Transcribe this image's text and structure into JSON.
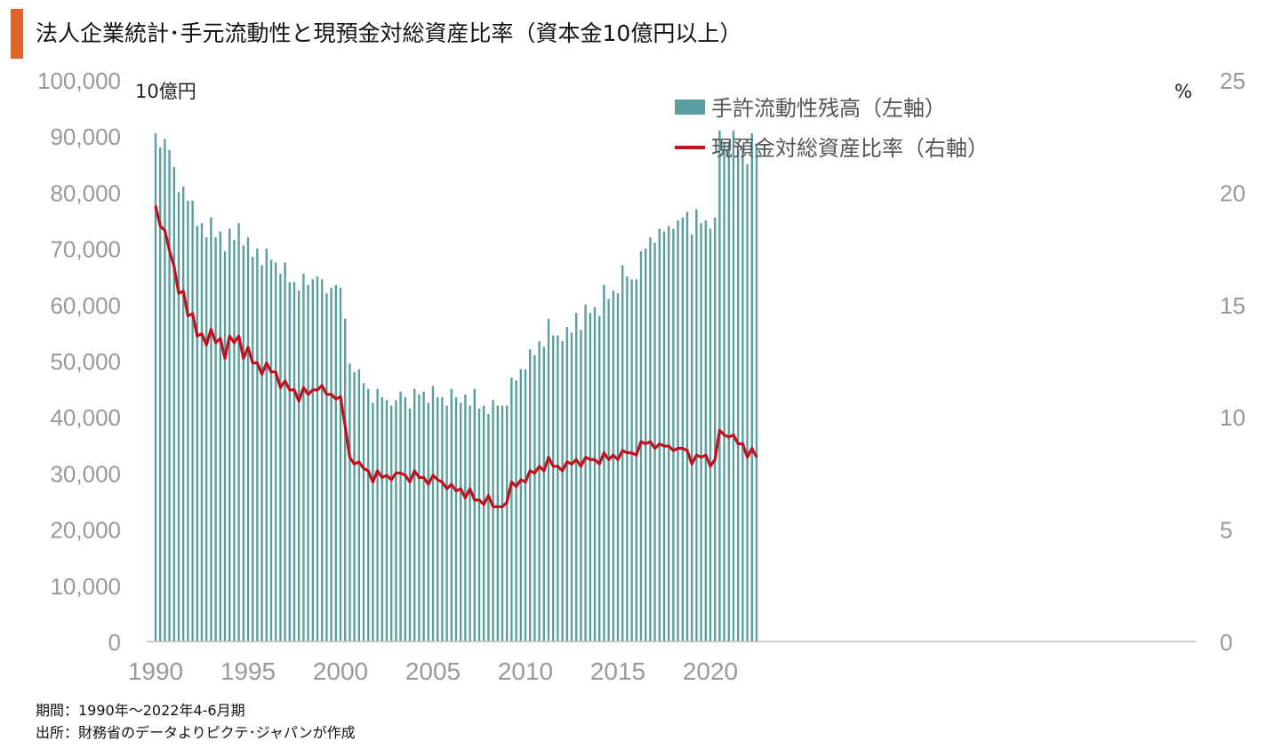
{
  "title": "法人企業統計･手元流動性と現預金対総資産比率（資本金10億円以上）",
  "notes": {
    "period": "期間：1990年～2022年4-6月期",
    "source": "出所：財務省のデータよりピクテ･ジャパンが作成"
  },
  "colors": {
    "accent": "#e0632a",
    "bars": "#5b9ea0",
    "line": "#c0111f"
  },
  "chart_data": {
    "type": "bar+line",
    "left_axis": {
      "unit": "10億円",
      "ylim": [
        0,
        100000
      ],
      "ticks": [
        "100,000",
        "90,000",
        "80,000",
        "70,000",
        "60,000",
        "50,000",
        "40,000",
        "30,000",
        "20,000",
        "10,000",
        "0"
      ]
    },
    "right_axis": {
      "unit": "%",
      "ylim": [
        0,
        25
      ],
      "ticks": [
        "25",
        "20",
        "15",
        "10",
        "5",
        "0"
      ]
    },
    "x_axis": {
      "start_year": 1990,
      "ticks": [
        "1990",
        "1995",
        "2000",
        "2005",
        "2010",
        "2015",
        "2020"
      ]
    },
    "legend": [
      "手許流動性残高（左軸）",
      "現預金対総資産比率（右軸）"
    ],
    "series": [
      {
        "name": "手許流動性残高（左軸）",
        "type": "bar",
        "values": [
          90500,
          88000,
          89500,
          87500,
          84500,
          80000,
          81000,
          78500,
          78500,
          74000,
          74500,
          72000,
          75500,
          72000,
          73000,
          69500,
          73500,
          71500,
          74500,
          70500,
          72000,
          68500,
          70000,
          67000,
          70000,
          68000,
          67500,
          65500,
          67500,
          64000,
          64000,
          62500,
          65500,
          63500,
          64500,
          65000,
          64500,
          62000,
          63000,
          63500,
          63000,
          57500,
          49500,
          48000,
          48500,
          46000,
          45000,
          42500,
          45000,
          43500,
          43000,
          42000,
          43000,
          44500,
          43500,
          41500,
          45000,
          44000,
          44500,
          42500,
          45500,
          43500,
          43500,
          42000,
          45000,
          43500,
          42500,
          44000,
          42000,
          45000,
          41500,
          42000,
          40500,
          43000,
          42000,
          42000,
          42000,
          47000,
          46500,
          48500,
          48500,
          52000,
          51000,
          53500,
          52500,
          57500,
          54500,
          54500,
          53500,
          56000,
          55000,
          58500,
          55500,
          60000,
          58500,
          59500,
          58000,
          63500,
          61000,
          62500,
          62000,
          67000,
          65000,
          64500,
          64500,
          69500,
          70000,
          72000,
          71000,
          73500,
          73000,
          74000,
          73500,
          75000,
          75500,
          76500,
          72500,
          77000,
          74500,
          75000,
          73500,
          75500,
          91000,
          89000,
          89000,
          91000,
          87500,
          88000,
          85000,
          90500,
          88500
        ]
      },
      {
        "name": "現預金対総資産比率（右軸）",
        "type": "line",
        "values": [
          19.4,
          18.5,
          18.3,
          17.4,
          16.7,
          15.5,
          15.6,
          14.5,
          14.6,
          13.6,
          13.7,
          13.2,
          13.9,
          13.3,
          13.5,
          12.6,
          13.6,
          13.3,
          13.6,
          12.6,
          13.1,
          12.4,
          12.4,
          11.9,
          12.4,
          12.0,
          12.0,
          11.3,
          11.6,
          11.2,
          11.2,
          10.7,
          11.3,
          11.0,
          11.2,
          11.2,
          11.4,
          11.0,
          11.0,
          10.8,
          10.9,
          9.6,
          8.2,
          7.9,
          8.0,
          7.7,
          7.6,
          7.1,
          7.6,
          7.3,
          7.4,
          7.2,
          7.5,
          7.5,
          7.4,
          7.1,
          7.6,
          7.3,
          7.3,
          7.0,
          7.4,
          7.2,
          7.1,
          6.8,
          7.0,
          6.7,
          6.8,
          6.4,
          6.8,
          6.3,
          6.3,
          6.1,
          6.5,
          6.0,
          6.0,
          6.0,
          6.2,
          7.1,
          6.9,
          7.2,
          7.1,
          7.6,
          7.5,
          7.8,
          7.6,
          8.2,
          7.8,
          7.8,
          7.6,
          8.0,
          7.9,
          8.1,
          7.8,
          8.2,
          8.1,
          8.1,
          7.9,
          8.4,
          8.1,
          8.3,
          8.1,
          8.5,
          8.4,
          8.4,
          8.3,
          8.9,
          8.8,
          8.9,
          8.6,
          8.8,
          8.7,
          8.7,
          8.5,
          8.6,
          8.6,
          8.5,
          7.9,
          8.3,
          8.2,
          8.3,
          7.8,
          8.1,
          9.4,
          9.2,
          9.1,
          9.2,
          8.8,
          8.8,
          8.2,
          8.6,
          8.2
        ]
      }
    ]
  }
}
